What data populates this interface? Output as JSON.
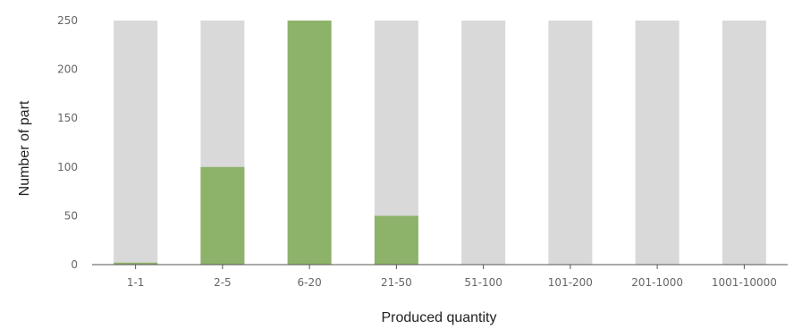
{
  "chart_data": {
    "type": "bar",
    "xlabel": "Produced quantity",
    "ylabel": "Number of part",
    "categories": [
      "1-1",
      "2-5",
      "6-20",
      "21-50",
      "51-100",
      "101-200",
      "201-1000",
      "1001-10000"
    ],
    "values": [
      2,
      100,
      250,
      50,
      0,
      0,
      0,
      0
    ],
    "ylim": [
      0,
      250
    ],
    "yticks": [
      0,
      50,
      100,
      150,
      200,
      250
    ],
    "grid": false,
    "legend": "none",
    "colors": {
      "bar": "#8db26a",
      "background_bar": "#d9d9d9",
      "axis": "#555555"
    }
  }
}
